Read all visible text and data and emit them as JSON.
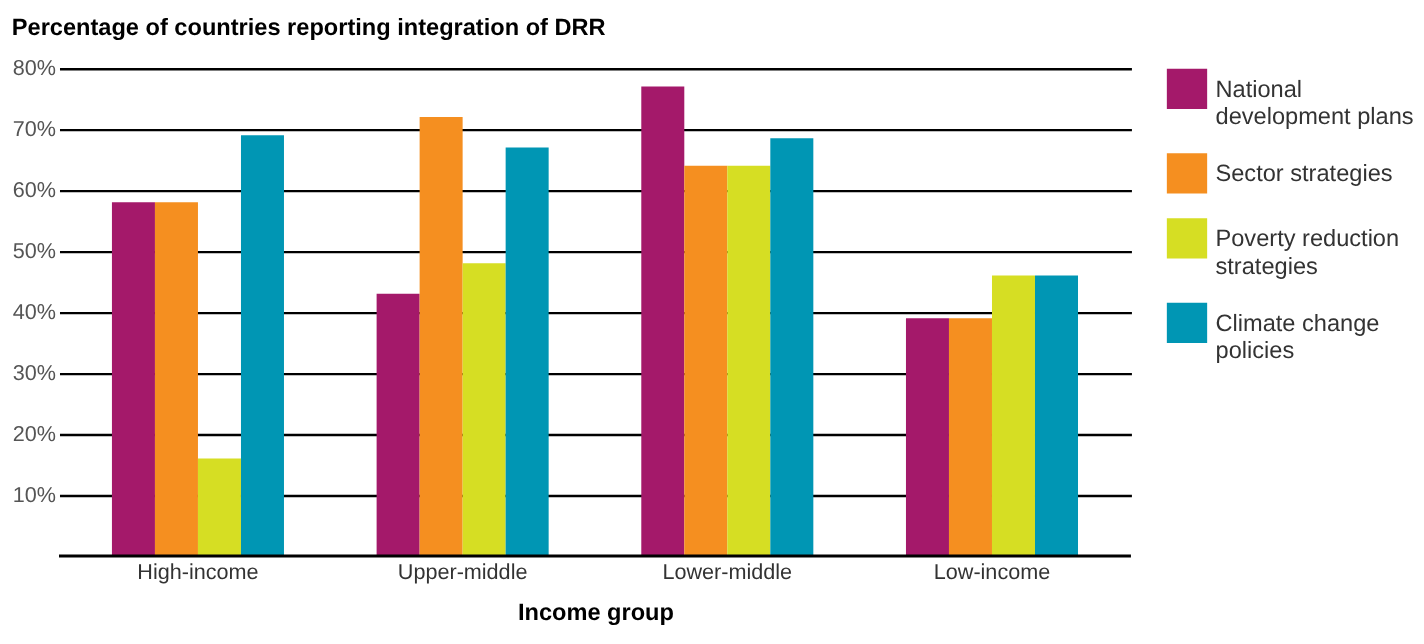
{
  "chart_data": {
    "type": "bar",
    "title": "Percentage of countries reporting integration of DRR",
    "xlabel": "Income group",
    "categories": [
      "High-income",
      "Upper-middle",
      "Lower-middle",
      "Low-income"
    ],
    "series": [
      {
        "name": "National development plans",
        "color": "#a4196a",
        "values": [
          58,
          43,
          77,
          39
        ]
      },
      {
        "name": "Sector strategies",
        "color": "#f58f20",
        "values": [
          58,
          72,
          64,
          39
        ]
      },
      {
        "name": "Poverty reduction strategies",
        "color": "#d6de23",
        "values": [
          16,
          48,
          64,
          46
        ]
      },
      {
        "name": "Climate change policies",
        "color": "#0096b4",
        "values": [
          69,
          67,
          68.5,
          46
        ]
      }
    ],
    "ylim": [
      0,
      80
    ],
    "yticks": [
      {
        "value": 10,
        "label": "10%"
      },
      {
        "value": 20,
        "label": "20%"
      },
      {
        "value": 30,
        "label": "30%"
      },
      {
        "value": 40,
        "label": "40%"
      },
      {
        "value": 50,
        "label": "50%"
      },
      {
        "value": 60,
        "label": "60%"
      },
      {
        "value": 70,
        "label": "70%"
      },
      {
        "value": 80,
        "label": "80%"
      }
    ],
    "grid": "y",
    "legend": "right"
  }
}
